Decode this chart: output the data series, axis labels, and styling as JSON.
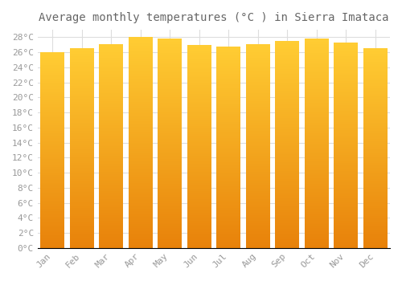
{
  "title": "Average monthly temperatures (°C ) in Sierra Imataca",
  "months": [
    "Jan",
    "Feb",
    "Mar",
    "Apr",
    "May",
    "Jun",
    "Jul",
    "Aug",
    "Sep",
    "Oct",
    "Nov",
    "Dec"
  ],
  "values": [
    26.0,
    26.5,
    27.1,
    28.0,
    27.8,
    27.0,
    26.7,
    27.1,
    27.5,
    27.8,
    27.3,
    26.5
  ],
  "bar_color_bottom": "#E8820A",
  "bar_color_top": "#FFCC33",
  "ylim": [
    0,
    29
  ],
  "ytick_step": 2,
  "background_color": "#FFFFFF",
  "grid_color": "#DDDDDD",
  "title_fontsize": 10,
  "tick_fontsize": 8,
  "tick_font_color": "#999999",
  "bar_width": 0.82
}
